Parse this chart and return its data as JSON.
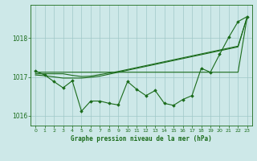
{
  "x": [
    0,
    1,
    2,
    3,
    4,
    5,
    6,
    7,
    8,
    9,
    10,
    11,
    12,
    13,
    14,
    15,
    16,
    17,
    18,
    19,
    20,
    21,
    22,
    23
  ],
  "line_jagged": [
    1017.15,
    1017.05,
    1016.88,
    1016.72,
    1016.9,
    1016.12,
    1016.38,
    1016.38,
    1016.32,
    1016.28,
    1016.88,
    1016.68,
    1016.52,
    1016.65,
    1016.32,
    1016.27,
    1016.42,
    1016.52,
    1017.22,
    1017.12,
    1017.58,
    1018.02,
    1018.42,
    1018.55
  ],
  "smooth_top": [
    1017.12,
    1017.12,
    1017.12,
    1017.12,
    1017.12,
    1017.12,
    1017.12,
    1017.12,
    1017.12,
    1017.12,
    1017.12,
    1017.12,
    1017.12,
    1017.12,
    1017.12,
    1017.12,
    1017.12,
    1017.12,
    1017.12,
    1017.12,
    1017.12,
    1017.12,
    1017.12,
    1018.55
  ],
  "smooth_mid": [
    1017.08,
    1017.08,
    1017.08,
    1017.08,
    1017.04,
    1017.01,
    1017.02,
    1017.06,
    1017.1,
    1017.14,
    1017.19,
    1017.24,
    1017.29,
    1017.34,
    1017.39,
    1017.44,
    1017.49,
    1017.54,
    1017.59,
    1017.64,
    1017.69,
    1017.74,
    1017.79,
    1018.55
  ],
  "smooth_bot": [
    1017.05,
    1017.03,
    1017.0,
    1016.97,
    1016.97,
    1016.97,
    1016.99,
    1017.02,
    1017.07,
    1017.12,
    1017.17,
    1017.22,
    1017.27,
    1017.32,
    1017.37,
    1017.42,
    1017.47,
    1017.52,
    1017.57,
    1017.62,
    1017.67,
    1017.72,
    1017.77,
    1018.55
  ],
  "background_color": "#cde8e8",
  "grid_color": "#a0c8c8",
  "line_color": "#1a6b1a",
  "title": "Graphe pression niveau de la mer (hPa)",
  "ylim": [
    1015.75,
    1018.85
  ],
  "yticks": [
    1016,
    1017,
    1018
  ],
  "xlim": [
    -0.5,
    23.5
  ],
  "figsize": [
    3.2,
    2.0
  ],
  "dpi": 100
}
